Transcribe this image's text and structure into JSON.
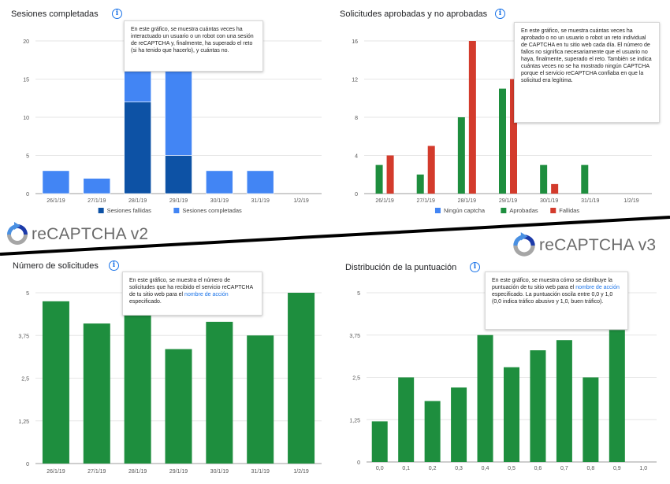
{
  "colors": {
    "dark_blue": "#0d52a5",
    "light_blue": "#4285f4",
    "green": "#1e8e3e",
    "red": "#d33b2c",
    "grid": "#e6e6e6",
    "axis": "#9e9e9e",
    "link": "#1a73e8"
  },
  "logos": {
    "v2": "reCAPTCHA v2",
    "v3": "reCAPTCHA v3"
  },
  "panels": {
    "p1": {
      "title": "Sesiones completadas",
      "tooltip": "En este gráfico, se muestra cuántas veces ha interactuado un usuario o un robot con una sesión de reCAPTCHA y, finalmente, ha superado el reto (si ha tenido que hacerlo), y cuántas no."
    },
    "p2": {
      "title": "Solicitudes aprobadas y no aprobadas",
      "tooltip": "En este gráfico, se muestra cuántas veces ha aprobado o no un usuario o robot un reto individual de CAPTCHA en tu sitio web cada día. El número de fallos no significa necesariamente que el usuario no haya, finalmente, superado el reto. También se indica cuántas veces no se ha mostrado ningún CAPTCHA porque el servicio reCAPTCHA confiaba en que la solicitud era legítima."
    },
    "p3": {
      "title": "Número de solicitudes",
      "tooltip_before": "En este gráfico, se muestra el número de solicitudes que ha recibido el servicio reCAPTCHA de tu sitio web para el ",
      "tooltip_link": "nombre de acción",
      "tooltip_after": " especificado."
    },
    "p4": {
      "title": "Distribución de la puntuación",
      "tooltip_before": "En este gráfico, se muestra cómo se distribuye la puntuación de tu sitio web para el ",
      "tooltip_link": "nombre de acción",
      "tooltip_after": " especificado. La puntuación oscila entre 0,0 y 1,0 (0,0 indica tráfico abusivo y 1,0, buen tráfico)."
    }
  },
  "chart_data": [
    {
      "type": "bar",
      "stacked": true,
      "title": "Sesiones completadas",
      "categories": [
        "26/1/19",
        "27/1/19",
        "28/1/19",
        "29/1/19",
        "30/1/19",
        "31/1/19",
        "1/2/19"
      ],
      "series": [
        {
          "name": "Sesiones fallidas",
          "values": [
            0,
            0,
            12,
            5,
            0,
            0,
            0
          ],
          "color": "#0d52a5"
        },
        {
          "name": "Sesiones completadas",
          "values": [
            3,
            2,
            8,
            15,
            3,
            3,
            0
          ],
          "color": "#4285f4"
        }
      ],
      "yticks": [
        "0",
        "5",
        "10",
        "15",
        "20"
      ],
      "ylim": [
        0,
        20
      ],
      "legend": "bottom",
      "grid": true
    },
    {
      "type": "bar",
      "title": "Solicitudes aprobadas y no aprobadas",
      "categories": [
        "26/1/19",
        "27/1/19",
        "28/1/19",
        "29/1/19",
        "30/1/19",
        "31/1/19",
        "1/2/19"
      ],
      "series": [
        {
          "name": "Ningún captcha",
          "values": [
            0,
            0,
            0,
            0,
            0,
            0,
            0
          ],
          "color": "#4285f4"
        },
        {
          "name": "Aprobadas",
          "values": [
            3,
            2,
            8,
            11,
            3,
            3,
            0
          ],
          "color": "#1e8e3e"
        },
        {
          "name": "Fallidas",
          "values": [
            4,
            5,
            16,
            12,
            1,
            0,
            0
          ],
          "color": "#d33b2c"
        }
      ],
      "yticks": [
        "0",
        "4",
        "8",
        "12",
        "16"
      ],
      "ylim": [
        0,
        16
      ],
      "legend": "bottom",
      "grid": true
    },
    {
      "type": "bar",
      "title": "Número de solicitudes",
      "categories": [
        "26/1/19",
        "27/1/19",
        "28/1/19",
        "29/1/19",
        "30/1/19",
        "31/1/19",
        "1/2/19"
      ],
      "values": [
        4.75,
        4.1,
        4.35,
        3.35,
        4.15,
        3.75,
        5.0
      ],
      "yticks": [
        "0",
        "1,25",
        "2,5",
        "3,75",
        "5"
      ],
      "ylim": [
        0,
        5
      ],
      "color": "#1e8e3e",
      "grid": true
    },
    {
      "type": "bar",
      "title": "Distribución de la puntuación",
      "categories": [
        "0,0",
        "0,1",
        "0,2",
        "0,3",
        "0,4",
        "0,5",
        "0,6",
        "0,7",
        "0,8",
        "0,9",
        "1,0"
      ],
      "values": [
        1.2,
        2.5,
        1.8,
        2.2,
        3.75,
        2.8,
        3.3,
        3.6,
        2.5,
        3.9,
        0
      ],
      "yticks": [
        "0",
        "1,25",
        "2,5",
        "3,75",
        "5"
      ],
      "ylim": [
        0,
        5
      ],
      "color": "#1e8e3e",
      "grid": true
    }
  ]
}
